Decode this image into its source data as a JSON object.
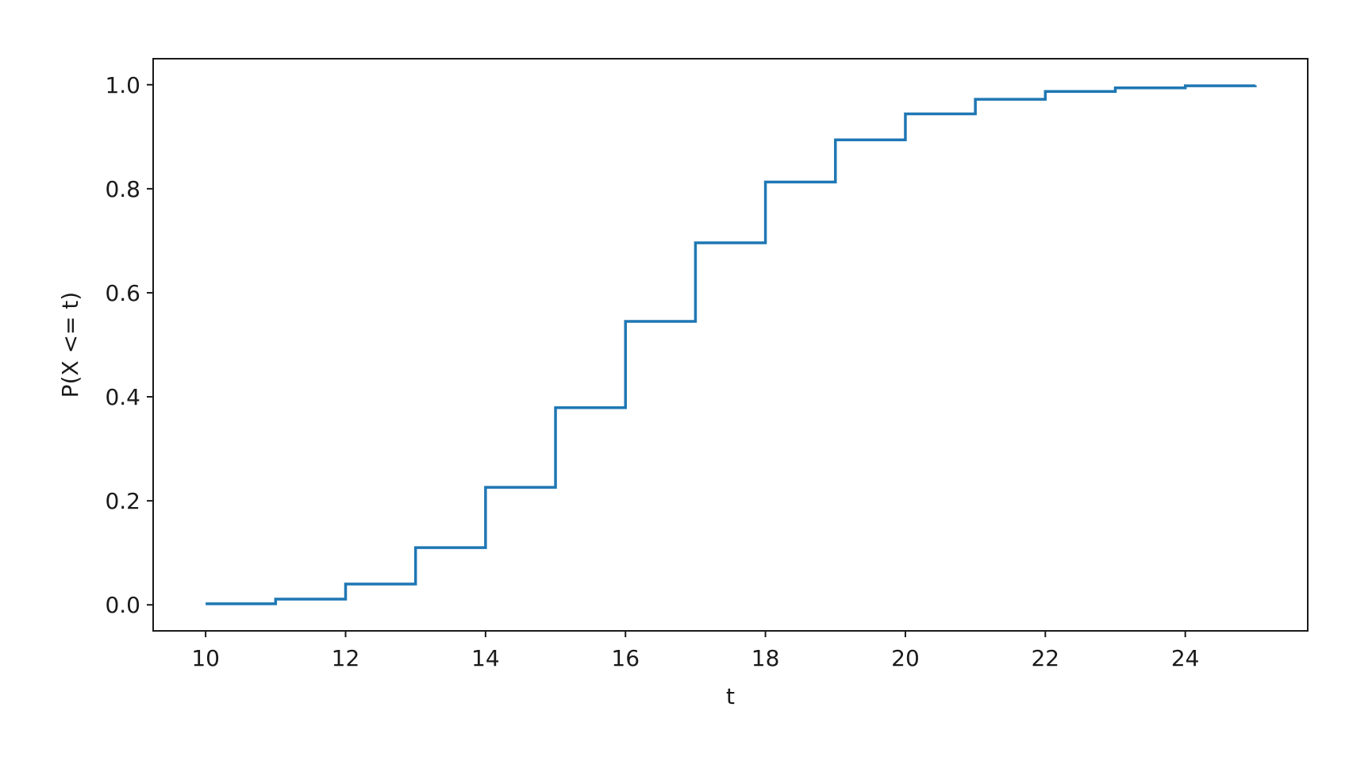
{
  "chart_data": {
    "type": "line",
    "step": "post",
    "title": "",
    "xlabel": "t",
    "ylabel": "P(X <= t)",
    "xlim": [
      9.25,
      25.75
    ],
    "ylim": [
      -0.05,
      1.05
    ],
    "xticks": [
      10,
      12,
      14,
      16,
      18,
      20,
      22,
      24
    ],
    "xtick_labels": [
      "10",
      "12",
      "14",
      "16",
      "18",
      "20",
      "22",
      "24"
    ],
    "yticks": [
      0.0,
      0.2,
      0.4,
      0.6,
      0.8,
      1.0
    ],
    "ytick_labels": [
      "0.0",
      "0.2",
      "0.4",
      "0.6",
      "0.8",
      "1.0"
    ],
    "grid": false,
    "series": [
      {
        "color": "#1f77b4",
        "x": [
          10,
          11,
          12,
          13,
          14,
          15,
          16,
          17,
          18,
          19,
          20,
          21,
          22,
          23,
          24,
          25
        ],
        "y": [
          0.002,
          0.011,
          0.04,
          0.11,
          0.226,
          0.379,
          0.545,
          0.696,
          0.813,
          0.894,
          0.944,
          0.972,
          0.987,
          0.994,
          0.998,
          0.999
        ]
      }
    ]
  }
}
